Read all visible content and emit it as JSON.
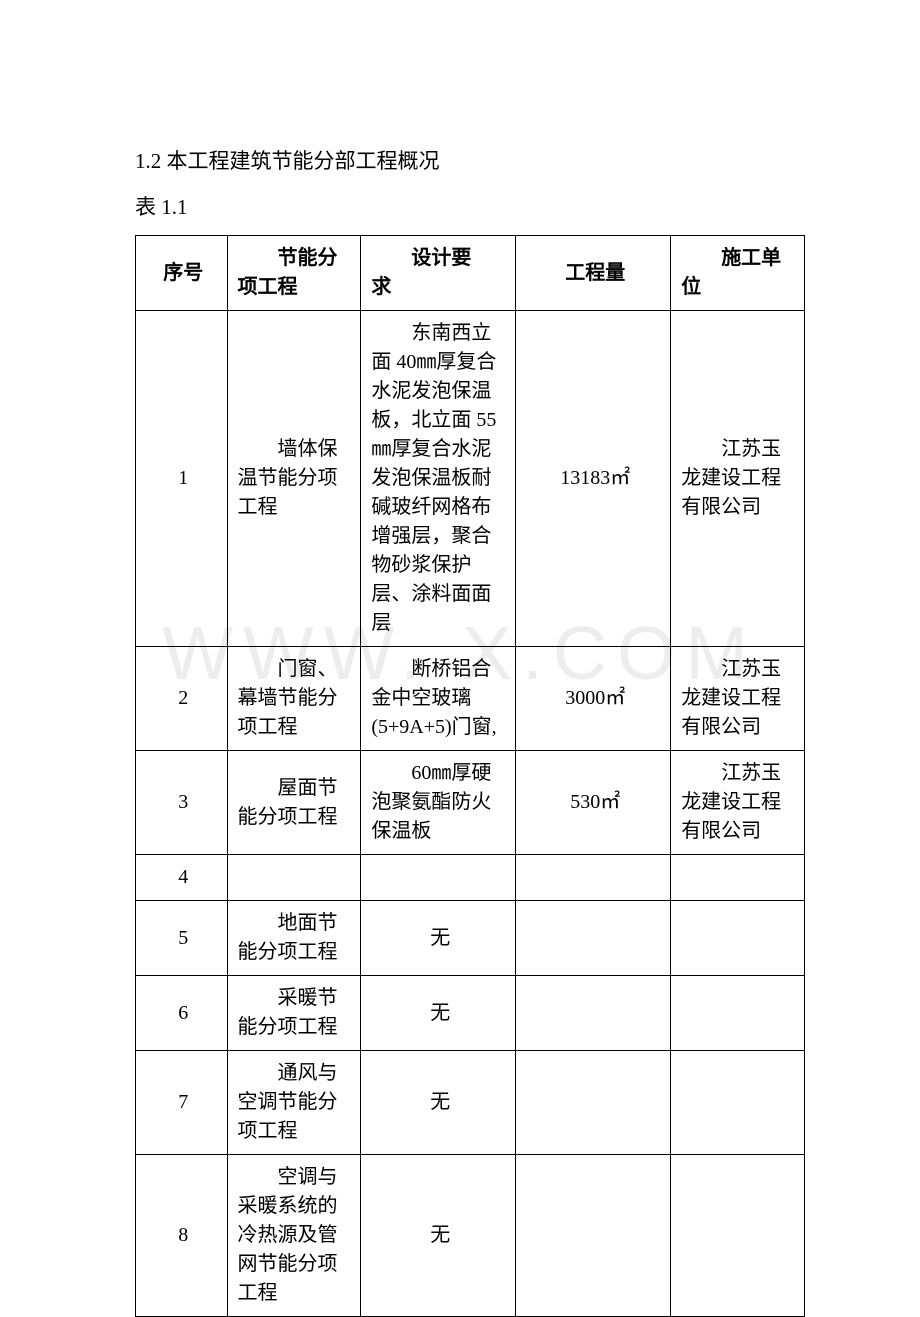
{
  "heading": "1.2 本工程建筑节能分部工程概况",
  "tableLabel": "表 1.1",
  "watermark": "WWW.    X.COM",
  "headers": {
    "seq": "序号",
    "item_line1": "节能分",
    "item_line2": "项工程",
    "req_line1": "设计要",
    "req_line2": "求",
    "qty": "工程量",
    "unit_line1": "施工单",
    "unit_line2": "位"
  },
  "rows": [
    {
      "seq": "1",
      "item": "墙体保温节能分项工程",
      "req": "东南西立面 40㎜厚复合水泥发泡保温板，北立面 55㎜厚复合水泥发泡保温板耐碱玻纤网格布增强层，聚合物砂浆保护层、涂料面面层",
      "qty": "13183㎡",
      "unit": "江苏玉龙建设工程有限公司"
    },
    {
      "seq": "2",
      "item": "门窗、幕墙节能分项工程",
      "req": "断桥铝合金中空玻璃(5+9A+5)门窗,",
      "qty": "3000㎡",
      "unit": "江苏玉龙建设工程有限公司"
    },
    {
      "seq": "3",
      "item": "屋面节能分项工程",
      "req": "60㎜厚硬泡聚氨酯防火保温板",
      "qty": "530㎡",
      "unit": "江苏玉龙建设工程有限公司"
    },
    {
      "seq": "4",
      "item": "",
      "req": "",
      "qty": "",
      "unit": ""
    },
    {
      "seq": "5",
      "item": "地面节能分项工程",
      "req": "无",
      "qty": "",
      "unit": ""
    },
    {
      "seq": "6",
      "item": "采暖节能分项工程",
      "req": "无",
      "qty": "",
      "unit": ""
    },
    {
      "seq": "7",
      "item": "通风与空调节能分项工程",
      "req": "无",
      "qty": "",
      "unit": ""
    },
    {
      "seq": "8",
      "item": "空调与采暖系统的冷热源及管网节能分项工程",
      "req": "无",
      "qty": "",
      "unit": ""
    }
  ]
}
